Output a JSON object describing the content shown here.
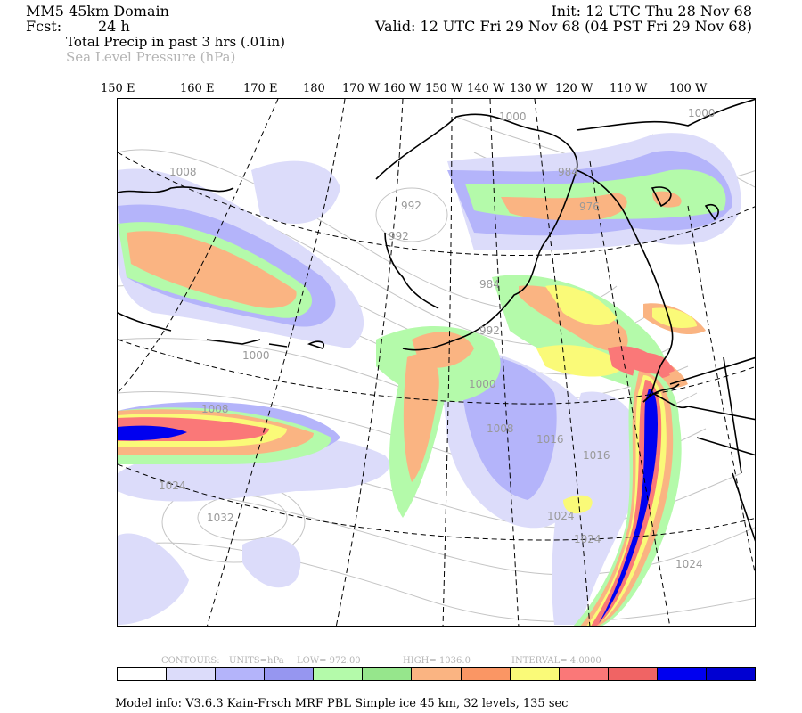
{
  "header": {
    "domain": "MM5 45km Domain",
    "fcst_label": "Fcst:",
    "fcst_value": "24 h",
    "init": "Init: 12 UTC Thu 28 Nov 68",
    "valid": "Valid: 12 UTC Fri 29 Nov 68 (04 PST Fri 29 Nov 68)",
    "field1": "Total Precip in past 3 hrs (.01in)",
    "field2": "Sea Level Pressure (hPa)"
  },
  "longitude_labels": [
    "150 E",
    "160 E",
    "170 E",
    "180",
    "170 W",
    "160 W",
    "150 W",
    "140 W",
    "130 W",
    "120 W",
    "110 W",
    "100 W"
  ],
  "isobar_labels": [
    "1000",
    "1000",
    "1008",
    "992",
    "992",
    "984",
    "984",
    "976",
    "992",
    "1000",
    "1000",
    "1008",
    "1008",
    "1016",
    "1016",
    "1024",
    "1024",
    "1024",
    "1024",
    "1032"
  ],
  "contours_info": {
    "contours": "CONTOURS:",
    "units": "UNITS=hPa",
    "low": "LOW=   972.00",
    "high": "HIGH=   1036.0",
    "interval": "INTERVAL=    4.0000"
  },
  "colorbar": [
    "#ffffff",
    "#dcdcfa",
    "#b4b4fa",
    "#9696f0",
    "#b4faaa",
    "#96e68c",
    "#fab482",
    "#fa9664",
    "#fafa78",
    "#fa7878",
    "#f06464",
    "#0000f0",
    "#0000d2"
  ],
  "footer": "Model info: V3.6.3 Kain-Frsch MRF PBL     Simple ice   45 km,  32 levels,  135 sec",
  "colors": {
    "lav1": "#dcdcfa",
    "lav2": "#b4b4fa",
    "green": "#b4faaa",
    "orange": "#fab482",
    "yellow": "#fafa78",
    "red": "#fa7878",
    "blue": "#0000f0",
    "isobar": "#b4b4b4"
  }
}
